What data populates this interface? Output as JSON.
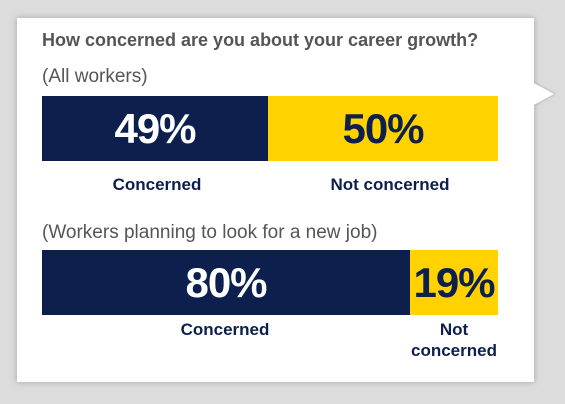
{
  "chart_data": [
    {
      "type": "bar",
      "stacked": true,
      "orientation": "horizontal",
      "title": "How concerned are you about your career growth?",
      "subtitle": "(All workers)",
      "categories": [
        "Concerned",
        "Not concerned"
      ],
      "values": [
        49,
        50
      ],
      "value_labels": [
        "49%",
        "50%"
      ],
      "xlim": [
        0,
        99
      ],
      "colors": [
        "#0c1f4d",
        "#ffd200"
      ]
    },
    {
      "type": "bar",
      "stacked": true,
      "orientation": "horizontal",
      "subtitle": "(Workers planning to look for a new job)",
      "categories": [
        "Concerned",
        "Not concerned"
      ],
      "values": [
        80,
        19
      ],
      "value_labels": [
        "80%",
        "19%"
      ],
      "xlim": [
        0,
        99
      ],
      "colors": [
        "#0c1f4d",
        "#ffd200"
      ]
    }
  ],
  "labels2": [
    "Concerned",
    "Not",
    "concerned"
  ]
}
